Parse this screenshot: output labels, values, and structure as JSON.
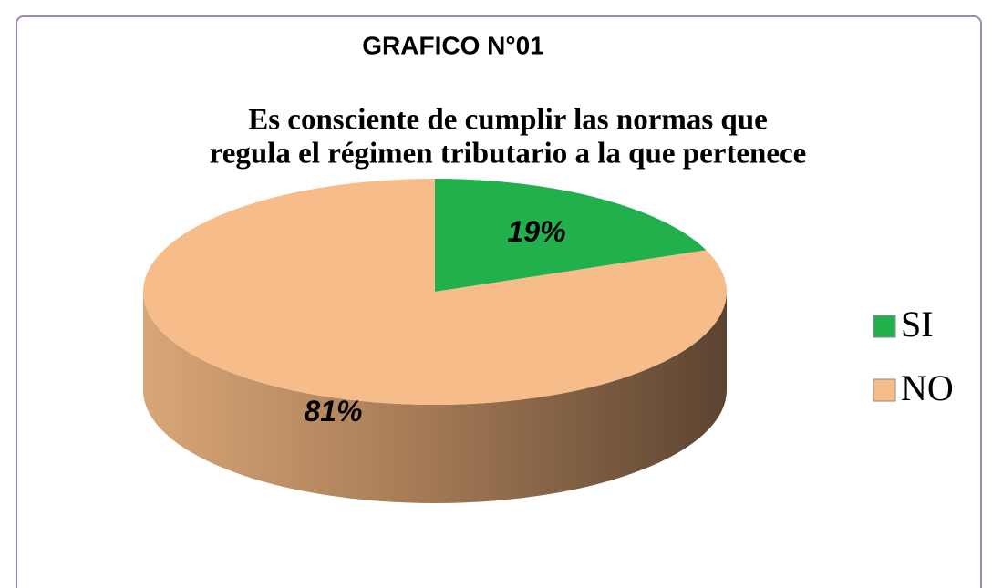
{
  "chart_data": {
    "type": "pie",
    "title": "GRAFICO N°01",
    "subtitle": [
      "Es consciente de cumplir las normas que",
      "regula el régimen tributario a la que pertenece"
    ],
    "categories": [
      "SI",
      "NO"
    ],
    "values": [
      19,
      81
    ],
    "value_labels": [
      "19%",
      "81%"
    ],
    "colors": [
      "#21b04c",
      "#f6bd8b"
    ],
    "legend": "right"
  }
}
